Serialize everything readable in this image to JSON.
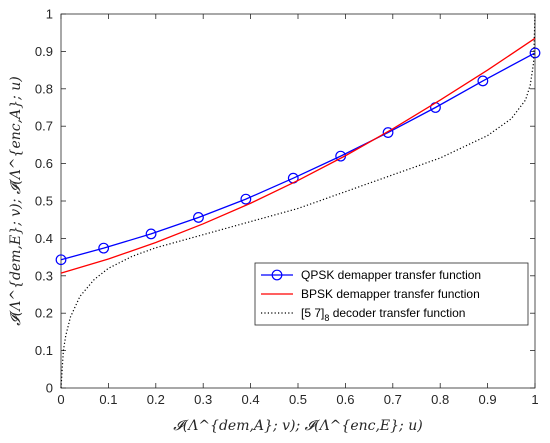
{
  "chart_data": {
    "type": "line",
    "xlabel": "𝓘(Λ^{dem,A}; v); 𝓘(Λ^{enc,E}; u)",
    "ylabel": "𝓘(Λ^{dem,E}; v); 𝓘(Λ^{enc,A}; u)",
    "xlim": [
      0,
      1
    ],
    "ylim": [
      0,
      1
    ],
    "xticks": [
      "0",
      "0.1",
      "0.2",
      "0.3",
      "0.4",
      "0.5",
      "0.6",
      "0.7",
      "0.8",
      "0.9",
      "1"
    ],
    "yticks": [
      "0",
      "0.1",
      "0.2",
      "0.3",
      "0.4",
      "0.5",
      "0.6",
      "0.7",
      "0.8",
      "0.9",
      "1"
    ],
    "grid": false,
    "legend_position": "lower-right",
    "series": [
      {
        "name": "QPSK demapper transfer function",
        "color": "#0000ff",
        "style": "solid-circle-markers",
        "x": [
          0,
          0.09,
          0.19,
          0.29,
          0.39,
          0.49,
          0.59,
          0.69,
          0.79,
          0.89,
          1.0
        ],
        "y": [
          0.343,
          0.374,
          0.412,
          0.456,
          0.505,
          0.561,
          0.62,
          0.683,
          0.75,
          0.821,
          0.896
        ]
      },
      {
        "name": "BPSK demapper transfer function",
        "color": "#ff0000",
        "style": "solid",
        "x": [
          0,
          0.1,
          0.2,
          0.3,
          0.4,
          0.5,
          0.6,
          0.7,
          0.8,
          0.9,
          1.0
        ],
        "y": [
          0.307,
          0.345,
          0.389,
          0.439,
          0.494,
          0.555,
          0.621,
          0.693,
          0.77,
          0.85,
          0.935
        ]
      },
      {
        "name": "[5 7]_8 decoder transfer function",
        "name_main": "[5 7]",
        "name_sub": "8",
        "name_rest": " decoder transfer function",
        "color": "#000000",
        "style": "dotted",
        "x": [
          0,
          0.005,
          0.01,
          0.02,
          0.04,
          0.07,
          0.1,
          0.15,
          0.2,
          0.3,
          0.4,
          0.5,
          0.6,
          0.7,
          0.8,
          0.9,
          0.95,
          0.98,
          0.99,
          0.997,
          1.0
        ],
        "y": [
          0.0,
          0.1,
          0.14,
          0.19,
          0.245,
          0.29,
          0.32,
          0.352,
          0.375,
          0.41,
          0.445,
          0.48,
          0.525,
          0.57,
          0.615,
          0.675,
          0.72,
          0.77,
          0.81,
          0.87,
          1.0
        ]
      }
    ]
  }
}
